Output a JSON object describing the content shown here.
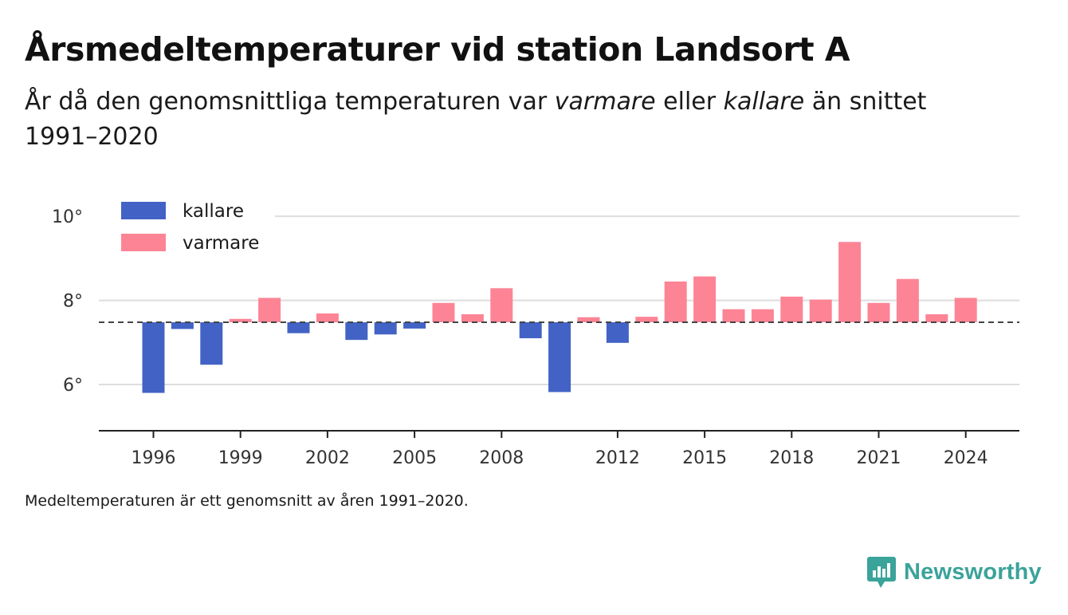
{
  "title": "Årsmedeltemperaturer vid station Landsort A",
  "subtitle": {
    "part1": "År då den genomsnittliga temperaturen var ",
    "warm_word": "varmare",
    "part2": " eller ",
    "cold_word": "kallare",
    "part3": " än snittet 1991–2020"
  },
  "footnote": "Medeltemperaturen är ett genomsnitt av åren 1991–2020.",
  "brand": "Newsworthy",
  "colors": {
    "colder": "#4263c5",
    "warmer": "#fd8495",
    "grid": "#dddddd",
    "baseline": "#444444",
    "brand": "#3aa39a"
  },
  "chart_data": {
    "type": "bar",
    "baseline": 7.48,
    "ylim": [
      4.9,
      10.25
    ],
    "y_ticks": [
      {
        "value": 6,
        "label": "6°"
      },
      {
        "value": 8,
        "label": "8°"
      },
      {
        "value": 10,
        "label": "10°"
      }
    ],
    "x_ticks": [
      "1996",
      "1999",
      "2002",
      "2005",
      "2008",
      "2012",
      "2015",
      "2018",
      "2021",
      "2024"
    ],
    "legend": [
      {
        "key": "colder",
        "label": "kallare"
      },
      {
        "key": "warmer",
        "label": "varmare"
      }
    ],
    "legend_position": "top-left",
    "grid": true,
    "years": [
      1996,
      1997,
      1998,
      1999,
      2000,
      2001,
      2002,
      2003,
      2004,
      2005,
      2006,
      2007,
      2008,
      2009,
      2010,
      2011,
      2012,
      2013,
      2014,
      2015,
      2016,
      2017,
      2018,
      2019,
      2020,
      2021,
      2022,
      2023,
      2024
    ],
    "values": [
      5.8,
      7.32,
      6.47,
      7.56,
      8.06,
      7.22,
      7.69,
      7.06,
      7.19,
      7.33,
      7.94,
      7.67,
      8.29,
      7.1,
      5.82,
      7.6,
      6.99,
      7.61,
      8.45,
      8.57,
      7.79,
      7.79,
      8.09,
      8.02,
      9.39,
      7.94,
      8.51,
      7.67,
      8.06
    ]
  }
}
